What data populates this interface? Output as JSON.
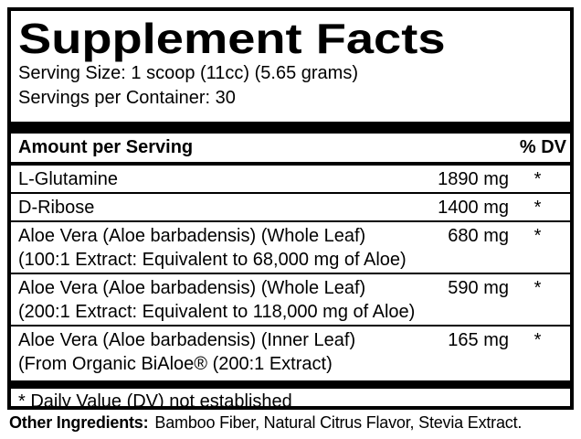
{
  "label": {
    "title": "Supplement Facts",
    "serving_size": "Serving Size: 1 scoop (11cc) (5.65 grams)",
    "servings_per_container": "Servings per Container: 30",
    "header": {
      "amount_per_serving": "Amount per Serving",
      "percent_dv": "% DV"
    },
    "rows": [
      {
        "name": "L-Glutamine",
        "sub": "",
        "amount": "1890 mg",
        "dv": "*"
      },
      {
        "name": "D-Ribose",
        "sub": "",
        "amount": "1400 mg",
        "dv": "*"
      },
      {
        "name": "Aloe Vera (Aloe barbadensis) (Whole Leaf)",
        "sub": "(100:1 Extract: Equivalent to 68,000 mg of Aloe)",
        "amount": "680 mg",
        "dv": "*"
      },
      {
        "name": "Aloe Vera (Aloe barbadensis) (Whole Leaf)",
        "sub": "(200:1 Extract: Equivalent to 118,000 mg of Aloe)",
        "amount": "590 mg",
        "dv": "*"
      },
      {
        "name": "Aloe Vera (Aloe barbadensis) (Inner Leaf)",
        "sub": "(From Organic BiAloe® (200:1 Extract)",
        "amount": "165 mg",
        "dv": "*"
      }
    ],
    "footnote": "* Daily Value (DV) not established",
    "other_ingredients_label": "Other Ingredients:",
    "other_ingredients_text": "Bamboo Fiber, Natural Citrus Flavor, Stevia Extract.",
    "colors": {
      "background": "#ffffff",
      "text": "#000000",
      "border": "#000000"
    }
  }
}
